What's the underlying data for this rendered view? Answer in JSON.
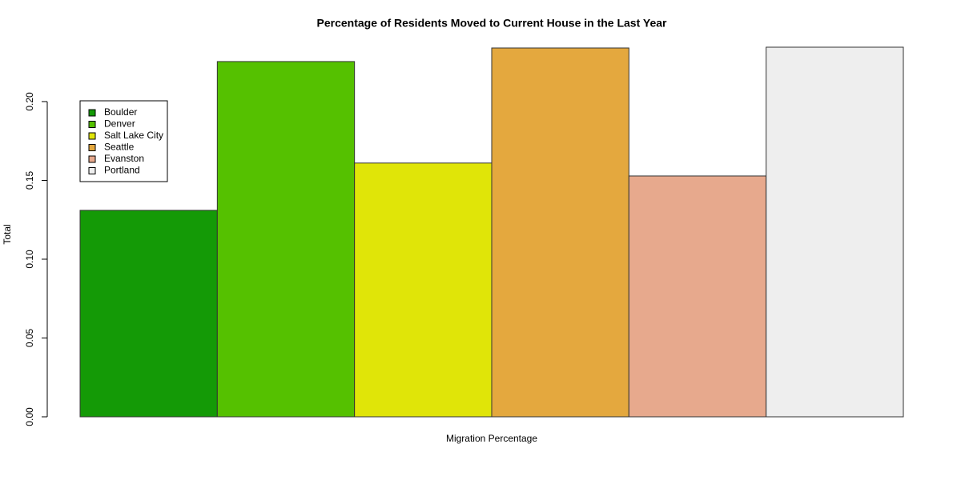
{
  "chart_data": {
    "type": "bar",
    "title": "Percentage of Residents Moved to Current House in the Last Year",
    "x_label": "Migration Percentage",
    "y_label": "Total",
    "categories": [
      "Boulder",
      "Denver",
      "Salt Lake City",
      "Seattle",
      "Evanston",
      "Portland"
    ],
    "values": [
      0.131,
      0.2254,
      0.161,
      0.234,
      0.1528,
      0.2345
    ],
    "colors": [
      "#149a06",
      "#55c100",
      "#e0e508",
      "#e4a83e",
      "#e7a98d",
      "#eeeeee"
    ],
    "ylim": [
      0,
      0.2345
    ],
    "yticks": [
      {
        "value": 0,
        "label": "0.00"
      },
      {
        "value": 0.05,
        "label": "0.05"
      },
      {
        "value": 0.1,
        "label": "0.10"
      },
      {
        "value": 0.15,
        "label": "0.15"
      },
      {
        "value": 0.2,
        "label": "0.20"
      }
    ],
    "legend": "top-left"
  }
}
